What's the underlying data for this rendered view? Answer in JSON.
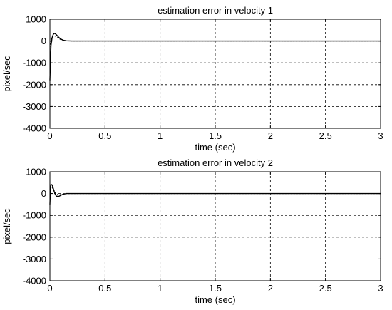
{
  "chart_data": [
    {
      "type": "line",
      "title": "estimation error in velocity 1",
      "xlabel": "time (sec)",
      "ylabel": "pixel/sec",
      "xlim": [
        0,
        3
      ],
      "ylim": [
        -4000,
        1000
      ],
      "xticks": [
        "0",
        "0.5",
        "1",
        "1.5",
        "2",
        "2.5",
        "3"
      ],
      "yticks": [
        "-4000",
        "-3000",
        "-2000",
        "-1000",
        "0",
        "1000"
      ],
      "grid": true,
      "series": [
        {
          "style": "solid",
          "x": [
            0,
            0.005,
            0.01,
            0.02,
            0.03,
            0.04,
            0.05,
            0.06,
            0.08,
            0.1,
            0.12,
            0.15,
            0.2,
            0.3,
            3
          ],
          "y": [
            -1800,
            -900,
            -200,
            150,
            300,
            350,
            330,
            280,
            170,
            90,
            40,
            10,
            0,
            0,
            0
          ]
        },
        {
          "style": "dashed",
          "x": [
            0,
            0.005,
            0.01,
            0.02,
            0.03,
            0.05,
            0.08,
            0.1,
            0.15,
            0.2,
            3
          ],
          "y": [
            -300,
            -150,
            50,
            200,
            250,
            220,
            120,
            60,
            10,
            0,
            0
          ]
        }
      ]
    },
    {
      "type": "line",
      "title": "estimation error in velocity 2",
      "xlabel": "time (sec)",
      "ylabel": "pixel/sec",
      "xlim": [
        0,
        3
      ],
      "ylim": [
        -4000,
        1000
      ],
      "xticks": [
        "0",
        "0.5",
        "1",
        "1.5",
        "2",
        "2.5",
        "3"
      ],
      "yticks": [
        "-4000",
        "-3000",
        "-2000",
        "-1000",
        "0",
        "1000"
      ],
      "grid": true,
      "series": [
        {
          "style": "solid",
          "x": [
            0,
            0.005,
            0.01,
            0.02,
            0.03,
            0.04,
            0.05,
            0.06,
            0.08,
            0.1,
            0.12,
            0.15,
            0.2,
            0.3,
            3
          ],
          "y": [
            -500,
            200,
            420,
            400,
            250,
            80,
            -50,
            -120,
            -130,
            -80,
            -30,
            0,
            0,
            0,
            0
          ]
        },
        {
          "style": "dashed",
          "x": [
            0,
            0.01,
            0.02,
            0.04,
            0.06,
            0.08,
            0.1,
            0.15,
            0.2,
            3
          ],
          "y": [
            100,
            300,
            280,
            120,
            -20,
            -60,
            -40,
            -5,
            0,
            0
          ]
        }
      ]
    }
  ]
}
